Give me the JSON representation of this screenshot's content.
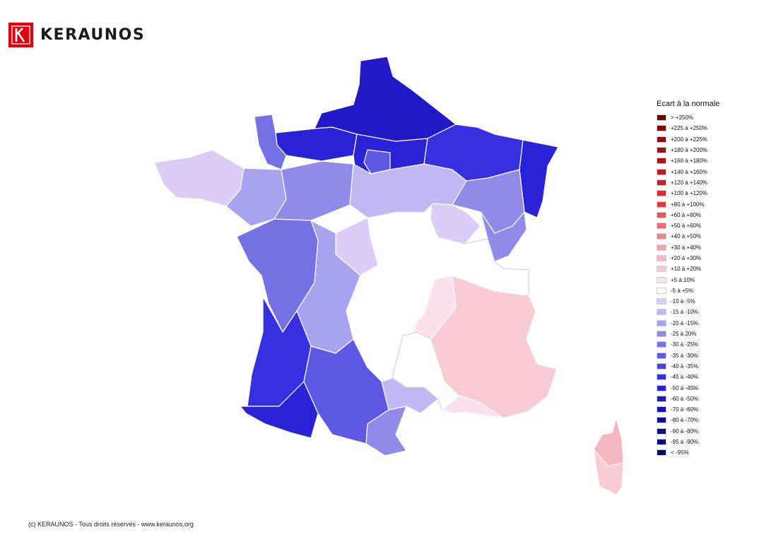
{
  "header": {
    "brand": "KERAUNOS",
    "logo_icon": "keraunos-logo-icon",
    "logo_color": "#e3000f"
  },
  "legend": {
    "title": "Ecart à la normale",
    "items": [
      {
        "label": "> +250%",
        "color": "#6d0000"
      },
      {
        "label": "+225 à +250%",
        "color": "#7d0508"
      },
      {
        "label": "+200 à +225%",
        "color": "#8e0a10"
      },
      {
        "label": "+180 à +200%",
        "color": "#9d1016"
      },
      {
        "label": "+160 à +180%",
        "color": "#ab151c"
      },
      {
        "label": "+140 à +160%",
        "color": "#bb1c22"
      },
      {
        "label": "+120 à +140%",
        "color": "#c92328"
      },
      {
        "label": "+100 à +120%",
        "color": "#d82c30"
      },
      {
        "label": "+80 à +100%",
        "color": "#e03a3d"
      },
      {
        "label": "+60 à +80%",
        "color": "#e55458"
      },
      {
        "label": "+50 à +60%",
        "color": "#ea6b70"
      },
      {
        "label": "+40 à +50%",
        "color": "#ee858b"
      },
      {
        "label": "+30 à +40%",
        "color": "#f2a3ab"
      },
      {
        "label": "+20 à +30%",
        "color": "#f5b8c2"
      },
      {
        "label": "+10 à +20%",
        "color": "#f8cbd5"
      },
      {
        "label": "+5 à 10%",
        "color": "#fbe0ee"
      },
      {
        "label": "-5 à +5%",
        "color": "#ffffff"
      },
      {
        "label": "-10 à -5%",
        "color": "#dbcdf7"
      },
      {
        "label": "-15 à -10%",
        "color": "#bfb8f2"
      },
      {
        "label": "-20 à -15%",
        "color": "#a8a3ee"
      },
      {
        "label": "-25 à 20%",
        "color": "#908ae9"
      },
      {
        "label": "-30 à -25%",
        "color": "#7471e5"
      },
      {
        "label": "-35 à -30%",
        "color": "#5e59e4"
      },
      {
        "label": "-40 à -35%",
        "color": "#4a43e4"
      },
      {
        "label": "-45 à -40%",
        "color": "#3730e0"
      },
      {
        "label": "-50 à -45%",
        "color": "#2a22d6"
      },
      {
        "label": "-60 à -50%",
        "color": "#2019c8"
      },
      {
        "label": "-70 à -60%",
        "color": "#1611b8"
      },
      {
        "label": "-80 à -70%",
        "color": "#0e0aa6"
      },
      {
        "label": "-90 à -80%",
        "color": "#080691"
      },
      {
        "label": "-95 à -90%",
        "color": "#04047c"
      },
      {
        "label": "< -95%",
        "color": "#000066"
      }
    ]
  },
  "map": {
    "regions": [
      {
        "id": "nord",
        "color": "#2019c8"
      },
      {
        "id": "normandie",
        "color": "#2a22d6"
      },
      {
        "id": "cotentin",
        "color": "#7471e5"
      },
      {
        "id": "picardie-aisne",
        "color": "#2a22d6"
      },
      {
        "id": "ardennes-lorraine",
        "color": "#3730e0"
      },
      {
        "id": "alsace",
        "color": "#2a22d6"
      },
      {
        "id": "ile-de-france",
        "color": "#5e59e4"
      },
      {
        "id": "bretagne-west",
        "color": "#dbcdf7"
      },
      {
        "id": "bretagne-east",
        "color": "#a8a3ee"
      },
      {
        "id": "pays-de-loire",
        "color": "#908ae9"
      },
      {
        "id": "centre-north",
        "color": "#bfb8f2"
      },
      {
        "id": "lorraine-south",
        "color": "#908ae9"
      },
      {
        "id": "franche-comte",
        "color": "#908ae9"
      },
      {
        "id": "burgundy-north",
        "color": "#dbcdf7"
      },
      {
        "id": "centre-white",
        "color": "#ffffff"
      },
      {
        "id": "vendee-charente",
        "color": "#7471e5"
      },
      {
        "id": "poitou-limousin",
        "color": "#a8a3ee"
      },
      {
        "id": "indre",
        "color": "#dbcdf7"
      },
      {
        "id": "rhone-alpes-west",
        "color": "#fbe0ee"
      },
      {
        "id": "rhone-alpes",
        "color": "#f8cbd5"
      },
      {
        "id": "aquitaine",
        "color": "#3730e0"
      },
      {
        "id": "landes-pyrenees",
        "color": "#2a22d6"
      },
      {
        "id": "midi-pyrenees",
        "color": "#5e59e4"
      },
      {
        "id": "aude-pyrenees",
        "color": "#908ae9"
      },
      {
        "id": "herault",
        "color": "#bfb8f2"
      },
      {
        "id": "gard-white",
        "color": "#ffffff"
      },
      {
        "id": "provence",
        "color": "#f8cbd5"
      },
      {
        "id": "bdr-var",
        "color": "#fbe0ee"
      },
      {
        "id": "corse-north",
        "color": "#f5b8c2"
      },
      {
        "id": "corse-south",
        "color": "#f8cbd5"
      }
    ]
  },
  "footer": {
    "copyright": "(c) KERAUNOS - Tous droits réservés - www.keraunos.org"
  }
}
